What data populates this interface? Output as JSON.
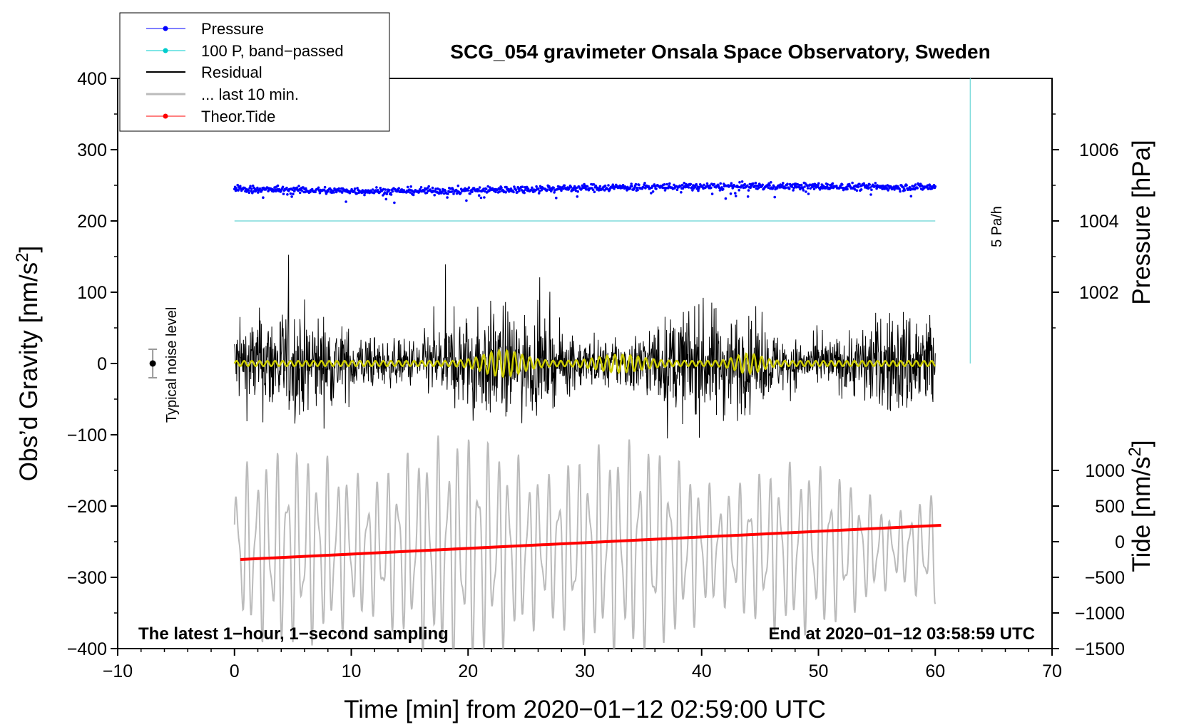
{
  "chart_data": {
    "type": "line",
    "title": "SCG_054 gravimeter Onsala Space Observatory, Sweden",
    "xlabel": "Time [min] from 2020−01−12 02:59:00 UTC",
    "ylabel_left_pre": "Obs’d Gravity [nm/s",
    "ylabel_left_sup": "2",
    "ylabel_left_post": "]",
    "ylabel_right_pressure": "Pressure [hPa]",
    "ylabel_right_tide_pre": "Tide [nm/s",
    "ylabel_right_tide_sup": "2",
    "ylabel_right_tide_post": "]",
    "xlim": [
      -10,
      70
    ],
    "ylim": [
      -400,
      400
    ],
    "x_ticks": [
      -10,
      0,
      10,
      20,
      30,
      40,
      50,
      60,
      70
    ],
    "x_tick_labels": [
      "−10",
      "0",
      "10",
      "20",
      "30",
      "40",
      "50",
      "60",
      "70"
    ],
    "y_ticks": [
      -400,
      -300,
      -200,
      -100,
      0,
      100,
      200,
      300,
      400
    ],
    "y_tick_labels": [
      "−400",
      "−300",
      "−200",
      "−100",
      "0",
      "100",
      "200",
      "300",
      "400"
    ],
    "pressure_axis": {
      "ticks": [
        1002,
        1004,
        1006
      ],
      "tick_labels": [
        "1002",
        "1004",
        "1006"
      ],
      "ref_hpa": 1004,
      "ref_gravity": 200,
      "gravity_per_hpa": 50
    },
    "tide_axis": {
      "ticks": [
        -1500,
        -1000,
        -500,
        0,
        500,
        1000
      ],
      "tick_labels": [
        "−1500",
        "−1000",
        "−500",
        "0",
        "500",
        "1000"
      ],
      "gravity_per_tide_unit": 0.1,
      "gravity_offset": -250
    },
    "corner_left": "The latest 1−hour, 1−second sampling",
    "corner_right": "End at 2020−01−12 03:58:59 UTC",
    "noise_label": "Typical noise level",
    "noise_bar": {
      "x": -7,
      "y": 0,
      "err": 20
    },
    "rate_label": "5 Pa/h",
    "rate_line": {
      "x": 63,
      "y_from": 0,
      "y_to": 400
    },
    "legend": [
      {
        "label": "Pressure",
        "color": "#0000ff",
        "marker": true,
        "width": 1
      },
      {
        "label": "100 P, band−passed",
        "color": "#00cccc",
        "marker": true,
        "width": 1
      },
      {
        "label": "Residual",
        "color": "#000000",
        "marker": false,
        "width": 2
      },
      {
        "label": "... last 10 min.",
        "color": "#bbbbbb",
        "marker": false,
        "width": 3
      },
      {
        "label": "Theor.Tide",
        "color": "#ff0000",
        "marker": true,
        "width": 1
      }
    ],
    "series": [
      {
        "name": "Pressure",
        "color": "#0000ff",
        "x_range": [
          0,
          60
        ],
        "level_gravity": 245,
        "drift_end_gravity": 250,
        "scatter": 6
      },
      {
        "name": "100 P, band−passed",
        "color": "#7fdcdc",
        "x_range": [
          0,
          60
        ],
        "level_gravity": 200
      },
      {
        "name": "Residual",
        "color": "#000000",
        "x_range": [
          0,
          60
        ],
        "amplitude": 130
      },
      {
        "name": "Band-passed residual",
        "color": "#cccc00",
        "x_range": [
          0,
          60
        ],
        "amplitude": 15
      },
      {
        "name": "... last 10 min.",
        "color": "#bbbbbb",
        "x_range": [
          0,
          60
        ],
        "center": -260,
        "amplitude": 120
      },
      {
        "name": "Theor.Tide",
        "color": "#ff0000",
        "x": [
          0.5,
          60.5
        ],
        "tide_values": [
          -250,
          230
        ]
      }
    ]
  }
}
